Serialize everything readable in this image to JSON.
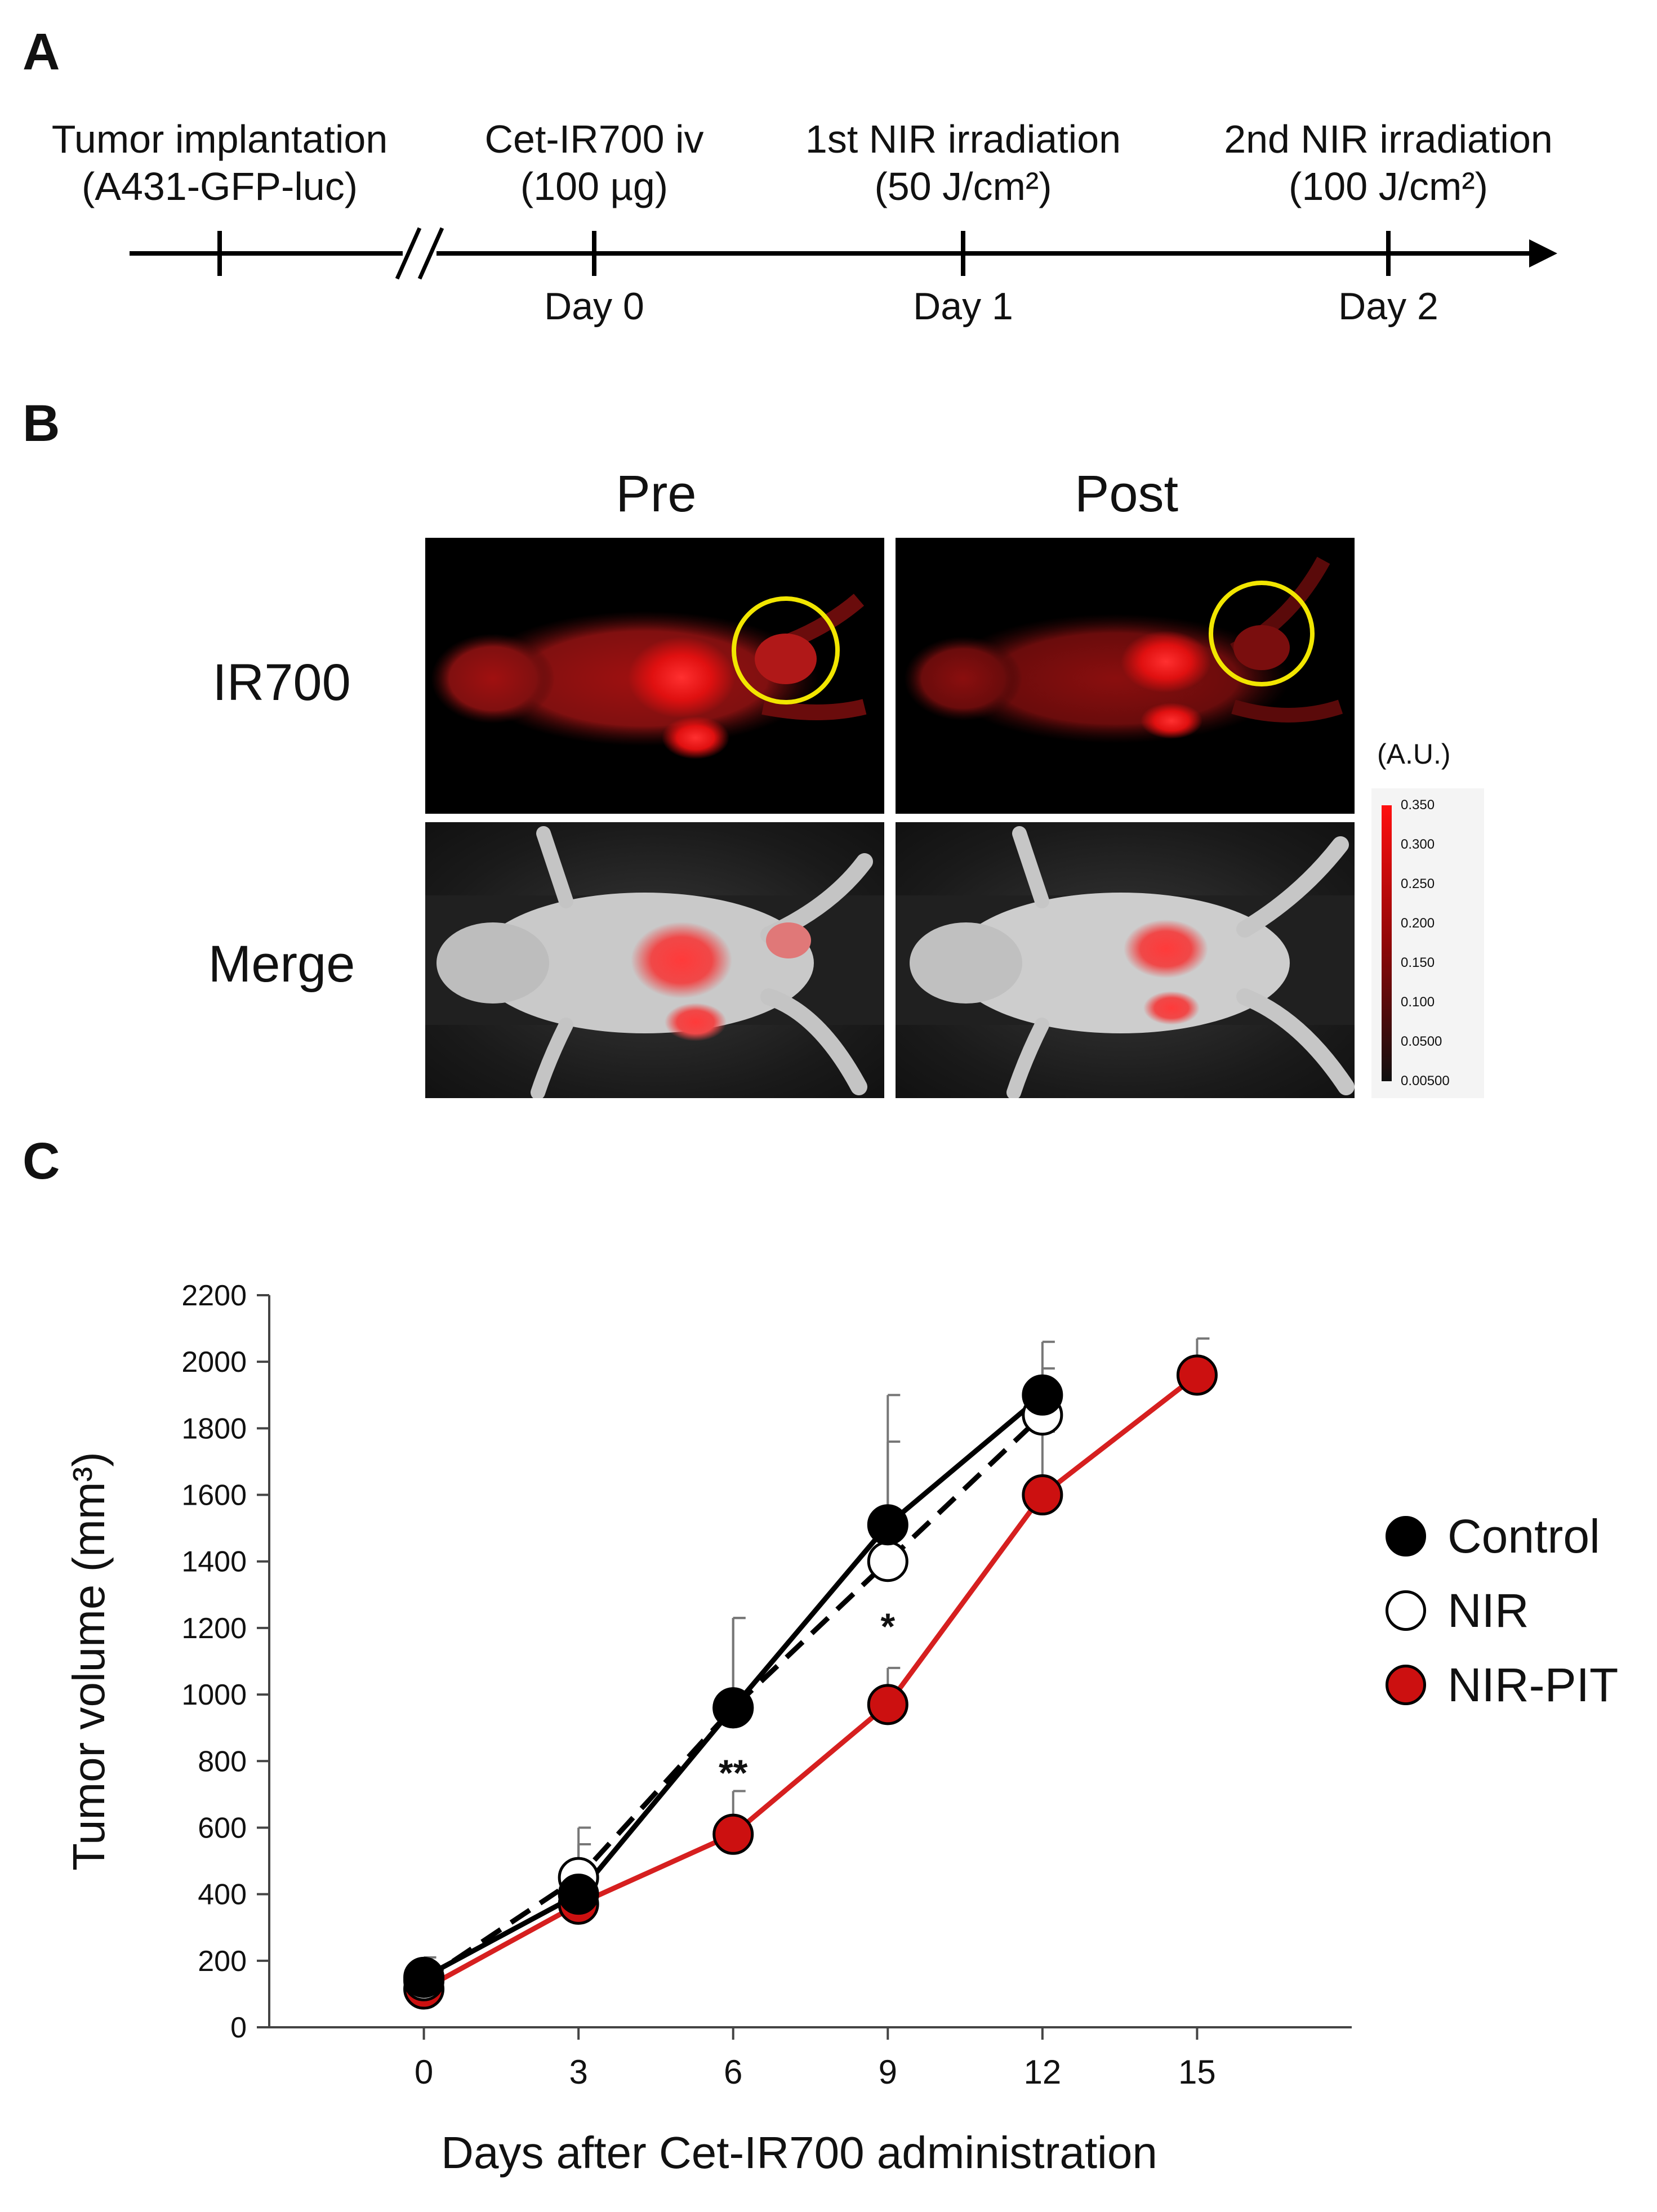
{
  "panels": {
    "a": "A",
    "b": "B",
    "c": "C"
  },
  "timeline": {
    "events": [
      {
        "line1": "Tumor implantation",
        "line2": "(A431-GFP-luc)",
        "day": ""
      },
      {
        "line1": "Cet-IR700 iv",
        "line2": "(100 µg)",
        "day": "Day 0"
      },
      {
        "line1": "1st NIR irradiation",
        "line2": "(50 J/cm²)",
        "day": "Day 1"
      },
      {
        "line1": "2nd NIR irradiation",
        "line2": "(100 J/cm²)",
        "day": "Day 2"
      }
    ]
  },
  "imaging": {
    "col_pre": "Pre",
    "col_post": "Post",
    "row_ir700": "IR700",
    "row_merge": "Merge",
    "scale_unit": "(A.U.)",
    "scale_ticks": [
      "0.350",
      "0.300",
      "0.250",
      "0.200",
      "0.150",
      "0.100",
      "0.0500",
      "0.00500"
    ],
    "colors": {
      "signal": "#ff2020",
      "roi_circle": "#f2e600"
    }
  },
  "chart_data": {
    "type": "line",
    "xlabel": "Days after Cet-IR700 administration",
    "ylabel": "Tumor volume (mm³)",
    "x": [
      0,
      3,
      6,
      9,
      12,
      15
    ],
    "xlim": [
      -3,
      18
    ],
    "ylim": [
      0,
      2200
    ],
    "yticks": [
      0,
      200,
      400,
      600,
      800,
      1000,
      1200,
      1400,
      1600,
      1800,
      2000,
      2200
    ],
    "xticks": [
      0,
      3,
      6,
      9,
      12,
      15
    ],
    "series": [
      {
        "name": "Control",
        "color": "#000000",
        "fill": "#000000",
        "dash": false,
        "x": [
          0,
          3,
          6,
          9,
          12
        ],
        "values": [
          150,
          400,
          960,
          1510,
          1900
        ],
        "err": [
          60,
          150,
          270,
          390,
          160
        ]
      },
      {
        "name": "NIR",
        "color": "#000000",
        "fill": "#ffffff",
        "dash": true,
        "x": [
          0,
          3,
          6,
          9,
          12
        ],
        "values": [
          140,
          450,
          960,
          1400,
          1840
        ],
        "err": [
          50,
          150,
          270,
          360,
          140
        ]
      },
      {
        "name": "NIR-PIT",
        "color": "#d61f1f",
        "fill": "#cc1010",
        "dash": false,
        "x": [
          0,
          3,
          6,
          9,
          12,
          15
        ],
        "values": [
          115,
          370,
          580,
          970,
          1600,
          1960
        ],
        "err": [
          40,
          50,
          130,
          110,
          190,
          110
        ]
      }
    ],
    "annotations": [
      {
        "text": "**",
        "x": 6,
        "y": 760
      },
      {
        "text": "*",
        "x": 9,
        "y": 1200
      }
    ]
  }
}
